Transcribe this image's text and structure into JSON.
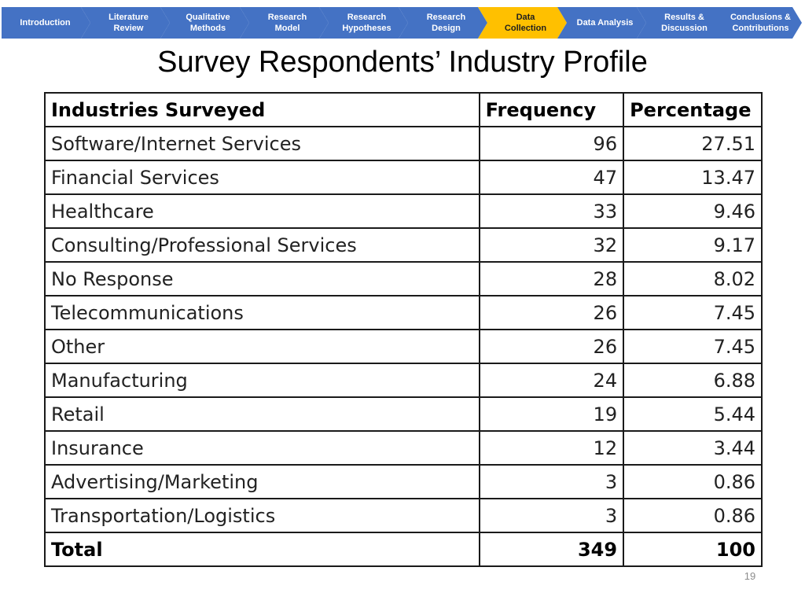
{
  "nav": {
    "steps": [
      {
        "label": "Introduction"
      },
      {
        "label": "Literature\nReview"
      },
      {
        "label": "Qualitative\nMethods"
      },
      {
        "label": "Research\nModel"
      },
      {
        "label": "Research\nHypotheses"
      },
      {
        "label": "Research\nDesign"
      },
      {
        "label": "Data\nCollection",
        "active": true
      },
      {
        "label": "Data Analysis"
      },
      {
        "label": "Results &\nDiscussion"
      },
      {
        "label": "Conclusions &\nContributions"
      }
    ],
    "colors": {
      "default": "#4472c4",
      "active": "#ffc000"
    }
  },
  "slide": {
    "title": "Survey Respondents’ Industry Profile",
    "page_number": "19"
  },
  "table": {
    "headers": [
      "Industries Surveyed",
      "Frequency",
      "Percentage"
    ],
    "rows": [
      [
        "Software/Internet Services",
        "96",
        "27.51"
      ],
      [
        "Financial Services",
        "47",
        "13.47"
      ],
      [
        "Healthcare",
        "33",
        "9.46"
      ],
      [
        "Consulting/Professional Services",
        "32",
        "9.17"
      ],
      [
        "No Response",
        "28",
        "8.02"
      ],
      [
        "Telecommunications",
        "26",
        "7.45"
      ],
      [
        "Other",
        "26",
        "7.45"
      ],
      [
        "Manufacturing",
        "24",
        "6.88"
      ],
      [
        "Retail",
        "19",
        "5.44"
      ],
      [
        "Insurance",
        "12",
        "3.44"
      ],
      [
        "Advertising/Marketing",
        "3",
        "0.86"
      ],
      [
        "Transportation/Logistics",
        "3",
        "0.86"
      ]
    ],
    "total": [
      "Total",
      "349",
      "100"
    ]
  }
}
